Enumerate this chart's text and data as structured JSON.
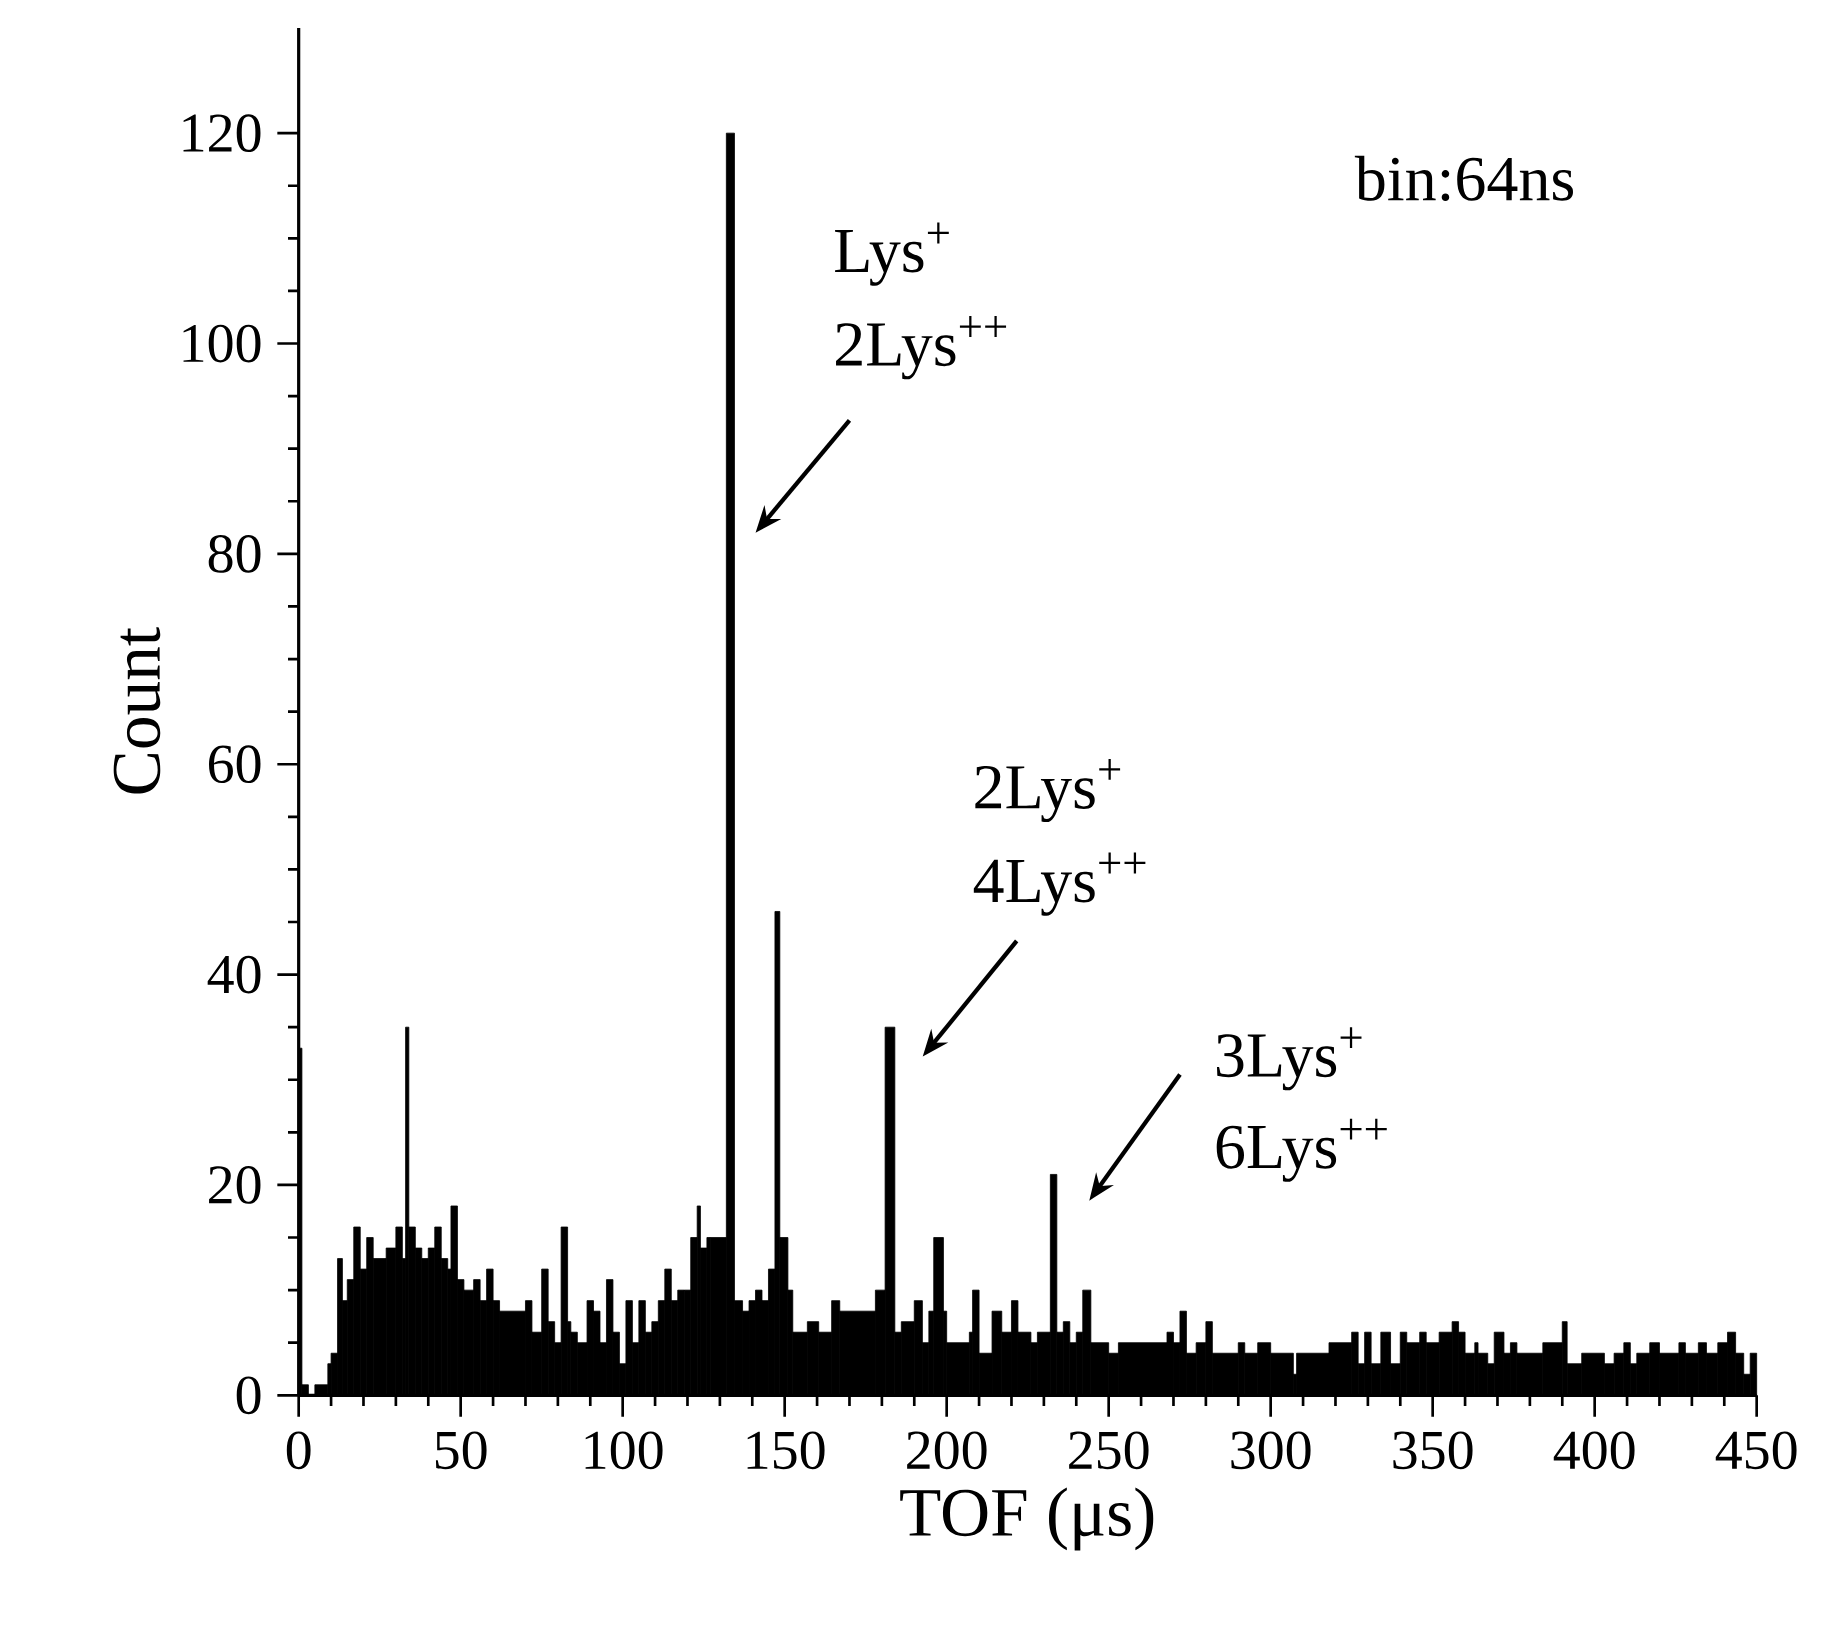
{
  "chart_data": {
    "type": "histogram",
    "xlabel": "TOF (μs)",
    "ylabel": "Count",
    "color": "#000000",
    "xlim": [
      0,
      450
    ],
    "ylim": [
      0,
      130
    ],
    "xticks": [
      0,
      50,
      100,
      150,
      200,
      250,
      300,
      350,
      400,
      450
    ],
    "yticks": [
      0,
      20,
      40,
      60,
      80,
      100,
      120
    ],
    "bins": [
      0,
      1,
      3,
      5,
      9,
      10,
      12,
      13.5,
      15,
      17,
      19,
      21,
      23,
      27,
      30,
      32,
      33,
      34,
      36,
      38,
      40,
      42,
      44,
      46,
      47,
      49,
      51,
      54,
      56,
      58,
      60,
      62,
      70,
      72,
      75,
      77,
      79,
      81,
      83,
      84,
      86,
      89,
      91,
      93,
      95,
      97,
      99,
      101,
      103,
      105,
      107,
      109,
      111,
      113,
      115,
      117,
      119,
      121,
      123,
      124,
      126,
      127,
      132,
      134.5,
      137,
      139,
      141,
      143,
      145,
      147,
      148.5,
      151,
      152.5,
      157,
      160.5,
      164.5,
      167,
      178,
      181,
      184,
      186,
      190,
      192.5,
      194.5,
      196,
      199,
      200,
      207,
      208,
      210,
      214,
      217,
      220,
      222,
      226,
      228,
      232,
      234,
      236,
      238,
      240,
      242,
      244.5,
      250,
      253,
      268,
      270,
      272,
      274,
      277,
      280,
      282,
      290,
      292,
      296,
      300,
      307,
      308,
      318,
      325,
      327,
      329,
      331,
      334,
      337,
      340,
      342,
      346,
      348,
      352,
      356,
      358,
      360,
      363,
      364,
      367,
      369,
      372,
      374,
      376,
      384,
      390,
      391.5,
      396,
      403,
      406,
      409,
      411,
      413,
      417,
      420,
      426,
      428,
      432,
      434.5,
      438,
      441,
      443.5,
      446,
      448,
      450
    ],
    "values": [
      33,
      1,
      0,
      1,
      3,
      4,
      13,
      9,
      11,
      16,
      12,
      15,
      13,
      14,
      16,
      13,
      35,
      16,
      14,
      13,
      14,
      16,
      13,
      12,
      18,
      11,
      10,
      11,
      9,
      12,
      9,
      8,
      9,
      6,
      12,
      7,
      5,
      16,
      7,
      6,
      5,
      9,
      8,
      5,
      11,
      6,
      3,
      9,
      5,
      9,
      6,
      7,
      9,
      12,
      9,
      10,
      10,
      15,
      18,
      14,
      15,
      15,
      120,
      9,
      8,
      9,
      10,
      9,
      12,
      46,
      15,
      10,
      6,
      7,
      6,
      9,
      8,
      10,
      35,
      6,
      7,
      9,
      5,
      8,
      15,
      8,
      5,
      6,
      10,
      4,
      8,
      6,
      9,
      6,
      5,
      6,
      21,
      6,
      7,
      5,
      6,
      10,
      5,
      4,
      5,
      6,
      5,
      8,
      4,
      5,
      7,
      4,
      5,
      4,
      5,
      4,
      2,
      4,
      5,
      6,
      3,
      6,
      3,
      6,
      3,
      6,
      5,
      6,
      5,
      6,
      7,
      6,
      4,
      5,
      4,
      3,
      6,
      4,
      5,
      4,
      5,
      7,
      3,
      4,
      3,
      4,
      5,
      3,
      4,
      5,
      4,
      5,
      4,
      5,
      4,
      5,
      6,
      4,
      2,
      4
    ],
    "annotations": [
      "Lys$^{+}$",
      "2Lys$^{++}$",
      "2Lys$^{+}$",
      "4Lys$^{++}$",
      "3Lys$^{+}$",
      "6Lys$^{++}$",
      "bin:64ns"
    ]
  }
}
